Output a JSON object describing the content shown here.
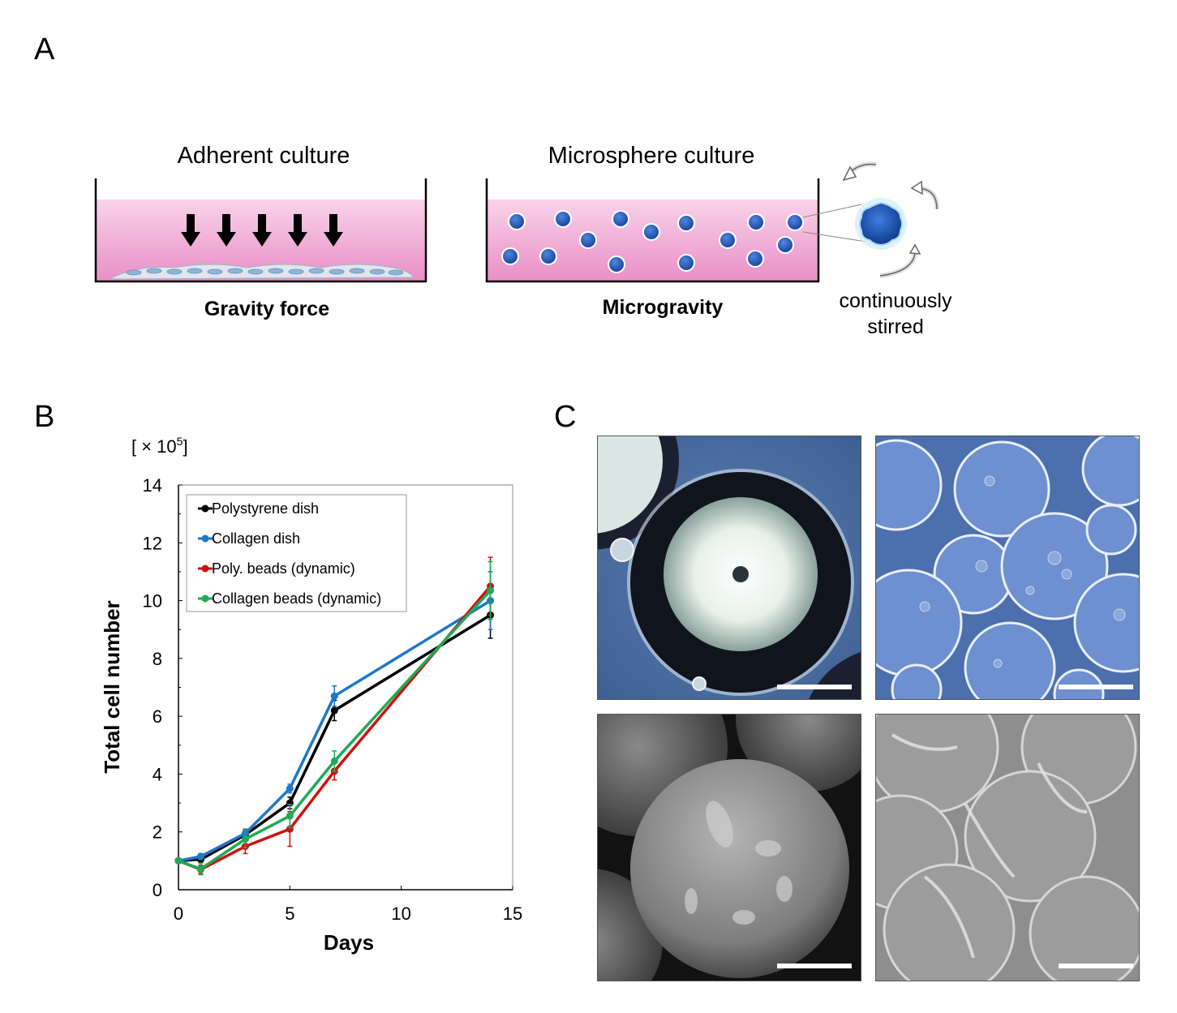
{
  "panel_a": {
    "letter": "A",
    "left_title": "Adherent culture",
    "left_caption": "Gravity force",
    "right_title": "Microsphere culture",
    "right_caption": "Microgravity",
    "stir_label_line1": "continuously",
    "stir_label_line2": "stirred",
    "colors": {
      "medium_top": "#f7c6e3",
      "medium_bottom": "#e98fc6",
      "bead": "#1f4fa8",
      "arrow": "#000000"
    }
  },
  "panel_b": {
    "letter": "B"
  },
  "panel_c": {
    "letter": "C"
  },
  "chart_data": {
    "type": "line",
    "title": "",
    "xlabel": "Days",
    "ylabel": "Total cell number",
    "y_unit_label": "[ × 10",
    "y_unit_exp": "5",
    "y_unit_close": "]",
    "xlim": [
      0,
      15
    ],
    "ylim": [
      0,
      14
    ],
    "xticks": [
      0,
      5,
      10,
      15
    ],
    "yticks": [
      0,
      2,
      4,
      6,
      8,
      10,
      12,
      14
    ],
    "grid": false,
    "legend_position": "top-left",
    "x": [
      0,
      1,
      3,
      5,
      7,
      14
    ],
    "series": [
      {
        "name": "Polystyrene dish",
        "color": "#000000",
        "values": [
          1.0,
          1.05,
          1.9,
          3.0,
          6.2,
          9.5
        ],
        "errors": [
          0.05,
          0.1,
          0.15,
          0.2,
          0.35,
          0.8
        ]
      },
      {
        "name": "Collagen dish",
        "color": "#1f77c8",
        "values": [
          1.0,
          1.15,
          1.95,
          3.5,
          6.7,
          10.0
        ],
        "errors": [
          0.05,
          0.1,
          0.15,
          0.15,
          0.35,
          1.0
        ]
      },
      {
        "name": "Poly. beads (dynamic)",
        "color": "#cc1111",
        "values": [
          1.0,
          0.7,
          1.5,
          2.1,
          4.1,
          10.5
        ],
        "errors": [
          0.05,
          0.15,
          0.25,
          0.6,
          0.3,
          1.0
        ]
      },
      {
        "name": "Collagen beads (dynamic)",
        "color": "#1faa55",
        "values": [
          1.0,
          0.72,
          1.75,
          2.55,
          4.45,
          10.35
        ],
        "errors": [
          0.05,
          0.2,
          0.3,
          0.4,
          0.35,
          1.0
        ]
      }
    ]
  }
}
